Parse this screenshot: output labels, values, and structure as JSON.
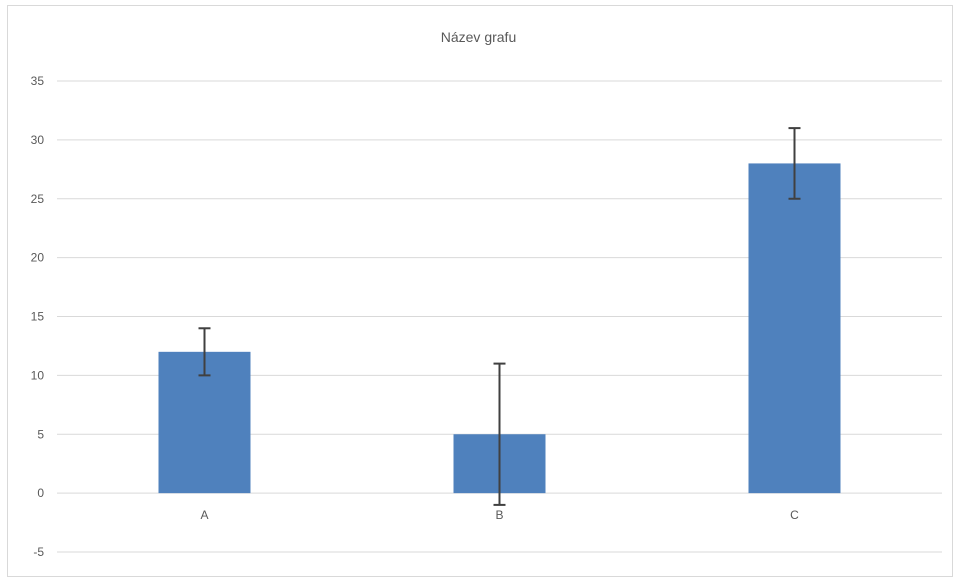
{
  "chart_data": {
    "type": "bar",
    "title": "Název grafu",
    "xlabel": "",
    "ylabel": "",
    "categories": [
      "A",
      "B",
      "C"
    ],
    "series": [
      {
        "values": [
          12,
          5,
          28
        ],
        "error_low": [
          10,
          -1,
          25
        ],
        "error_high": [
          14,
          11,
          31
        ]
      }
    ],
    "ylim": [
      -5,
      35
    ],
    "yticks": [
      -5,
      0,
      5,
      10,
      15,
      20,
      25,
      30,
      35
    ],
    "grid": true,
    "legend": "none",
    "colors": {
      "bar": "#4f81bd",
      "error": "#404040",
      "grid": "#d9d9d9",
      "text": "#595959"
    }
  }
}
